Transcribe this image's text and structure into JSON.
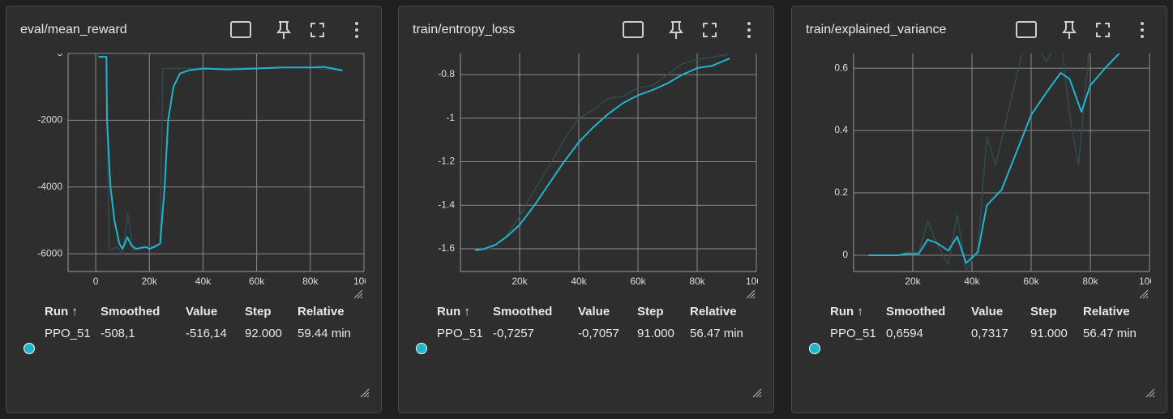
{
  "chart_data": [
    {
      "type": "line",
      "title": "eval/mean_reward",
      "xlim": [
        -10300,
        100000
      ],
      "xticks": [
        0,
        {
          "value": 20000,
          "label": "20k"
        },
        {
          "value": 40000,
          "label": "40k"
        },
        {
          "value": 60000,
          "label": "60k"
        },
        {
          "value": 80000,
          "label": "80k"
        },
        {
          "value": 100000,
          "label": "100k"
        }
      ],
      "ylim": [
        -6530,
        0
      ],
      "yticks": [
        0,
        -2000,
        -4000,
        -6000
      ],
      "grid": true,
      "series": [
        {
          "color": "#2f4b4f",
          "x": [
            1000,
            4000,
            5000,
            8000,
            10000,
            12000,
            14000,
            17000,
            20000,
            24000,
            25000,
            27000,
            30000,
            40000,
            60000,
            80000,
            92000
          ],
          "values": [
            -100,
            -100,
            -5900,
            -5800,
            -6000,
            -4800,
            -5900,
            -5800,
            -5800,
            -5700,
            -450,
            -450,
            -450,
            -450,
            -430,
            -420,
            -516.14
          ]
        },
        {
          "color": "#1fb5cf",
          "x": [
            1000,
            4000,
            4200,
            5500,
            7000,
            8800,
            10000,
            11800,
            13300,
            15000,
            18700,
            20000,
            21800,
            24000,
            25700,
            27000,
            29000,
            31400,
            35000,
            40000,
            49000,
            60000,
            70000,
            80000,
            85000,
            92000
          ],
          "values": [
            -100,
            -100,
            -2000,
            -4000,
            -5000,
            -5700,
            -5850,
            -5500,
            -5750,
            -5850,
            -5800,
            -5850,
            -5800,
            -5700,
            -4000,
            -2000,
            -1000,
            -600,
            -500,
            -450,
            -480,
            -450,
            -420,
            -420,
            -400,
            -508.1
          ]
        }
      ],
      "table": {
        "headers": [
          "Run ↑",
          "Smoothed",
          "Value",
          "Step",
          "Relative"
        ],
        "rows": [
          [
            "PPO_51",
            "-508,1",
            "-516,14",
            "92.000",
            "59.44 min"
          ]
        ]
      }
    },
    {
      "type": "line",
      "title": "train/entropy_loss",
      "xlim": [
        0,
        100000
      ],
      "xticks": [
        {
          "value": 20000,
          "label": "20k"
        },
        {
          "value": 40000,
          "label": "40k"
        },
        {
          "value": 60000,
          "label": "60k"
        },
        {
          "value": 80000,
          "label": "80k"
        },
        {
          "value": 100000,
          "label": "100k"
        }
      ],
      "ylim": [
        -1.704,
        -0.703
      ],
      "yticks": [
        -0.8,
        -1,
        -1.2,
        -1.4,
        -1.6
      ],
      "grid": true,
      "series": [
        {
          "color": "#2f4b4f",
          "x": [
            5000,
            10000,
            15000,
            20000,
            25000,
            30000,
            35000,
            40000,
            45000,
            50000,
            55000,
            60000,
            65000,
            70000,
            75000,
            80000,
            85000,
            91000
          ],
          "values": [
            -1.607,
            -1.6,
            -1.55,
            -1.45,
            -1.33,
            -1.22,
            -1.1,
            -1.0,
            -0.96,
            -0.91,
            -0.9,
            -0.86,
            -0.85,
            -0.8,
            -0.75,
            -0.73,
            -0.72,
            -0.7057
          ]
        },
        {
          "color": "#1fb5cf",
          "x": [
            5000,
            8000,
            12000,
            16000,
            20000,
            25000,
            30000,
            35000,
            40000,
            45000,
            50000,
            55000,
            60000,
            65000,
            70000,
            75000,
            80000,
            85000,
            91000
          ],
          "values": [
            -1.607,
            -1.6,
            -1.58,
            -1.54,
            -1.49,
            -1.4,
            -1.3,
            -1.2,
            -1.11,
            -1.04,
            -0.98,
            -0.93,
            -0.895,
            -0.87,
            -0.84,
            -0.8,
            -0.77,
            -0.76,
            -0.7257
          ]
        }
      ],
      "table": {
        "headers": [
          "Run ↑",
          "Smoothed",
          "Value",
          "Step",
          "Relative"
        ],
        "rows": [
          [
            "PPO_51",
            "-0,7257",
            "-0,7057",
            "91.000",
            "56.47 min"
          ]
        ]
      }
    },
    {
      "type": "line",
      "title": "train/explained_variance",
      "xlim": [
        0,
        100000
      ],
      "xticks": [
        {
          "value": 20000,
          "label": "20k"
        },
        {
          "value": 40000,
          "label": "40k"
        },
        {
          "value": 60000,
          "label": "60k"
        },
        {
          "value": 80000,
          "label": "80k"
        },
        {
          "value": 100000,
          "label": "100k"
        }
      ],
      "ylim": [
        -0.052,
        0.647
      ],
      "yticks": [
        0,
        0.2,
        0.4,
        0.6
      ],
      "grid": true,
      "series": [
        {
          "color": "#2f4b4f",
          "x": [
            5000,
            15000,
            18000,
            22000,
            25000,
            28000,
            32000,
            35000,
            38000,
            42000,
            45000,
            48000,
            52000,
            57000,
            61000,
            65000,
            70000,
            73000,
            76000,
            80000,
            91000
          ],
          "values": [
            0,
            0,
            0.01,
            0.01,
            0.11,
            0.04,
            -0.03,
            0.13,
            -0.05,
            0.02,
            0.38,
            0.29,
            0.45,
            0.65,
            0.7,
            0.62,
            0.7,
            0.45,
            0.29,
            0.7,
            0.7317
          ]
        },
        {
          "color": "#1fb5cf",
          "x": [
            5000,
            15000,
            18000,
            22000,
            25000,
            28000,
            32000,
            35000,
            38000,
            42000,
            45000,
            50000,
            55000,
            60000,
            65000,
            70000,
            73000,
            77000,
            80000,
            85000,
            91000
          ],
          "values": [
            0,
            0,
            0.005,
            0.005,
            0.05,
            0.04,
            0.015,
            0.06,
            -0.025,
            0.01,
            0.16,
            0.21,
            0.33,
            0.45,
            0.52,
            0.585,
            0.565,
            0.46,
            0.545,
            0.6,
            0.6594
          ]
        }
      ],
      "table": {
        "headers": [
          "Run ↑",
          "Smoothed",
          "Value",
          "Step",
          "Relative"
        ],
        "rows": [
          [
            "PPO_51",
            "0,6594",
            "0,7317",
            "91.000",
            "56.47 min"
          ]
        ]
      }
    }
  ]
}
